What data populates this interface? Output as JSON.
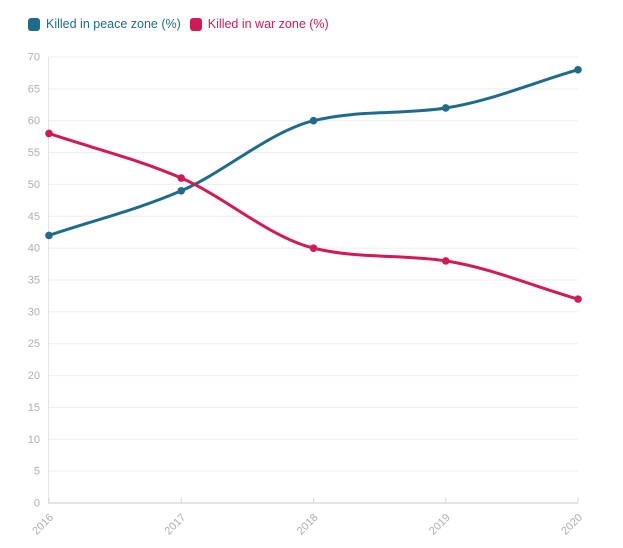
{
  "legend": {
    "items": [
      {
        "label": "Killed in peace zone (%)",
        "color": "#1f6b8c"
      },
      {
        "label": "Killed in war zone (%)",
        "color": "#d21a55"
      }
    ]
  },
  "chart_data": {
    "type": "line",
    "x": [
      "2016",
      "2017",
      "2018",
      "2019",
      "2020"
    ],
    "series": [
      {
        "name": "Killed in peace zone (%)",
        "color": "#1f6b8c",
        "values": [
          42,
          49,
          60,
          62,
          68
        ]
      },
      {
        "name": "Killed in war zone (%)",
        "color": "#d21a55",
        "values": [
          58,
          51,
          40,
          38,
          32
        ]
      }
    ],
    "title": "",
    "xlabel": "",
    "ylabel": "",
    "ylim": [
      0,
      70
    ],
    "ytick_step": 5,
    "yticks": [
      0,
      5,
      10,
      15,
      20,
      25,
      30,
      35,
      40,
      45,
      50,
      55,
      60,
      65,
      70
    ],
    "grid": "horizontal",
    "legend_position": "top-left",
    "marker": "circle",
    "line_smoothing": "monotone",
    "colors": {
      "background": "#ffffff",
      "axis_text": "#aeaeb4",
      "gridline": "#ededed",
      "bottom_axis_line": "#c9c9ce",
      "y_axis_line": "#e4e4e6",
      "tick": "#d9d9de"
    }
  }
}
